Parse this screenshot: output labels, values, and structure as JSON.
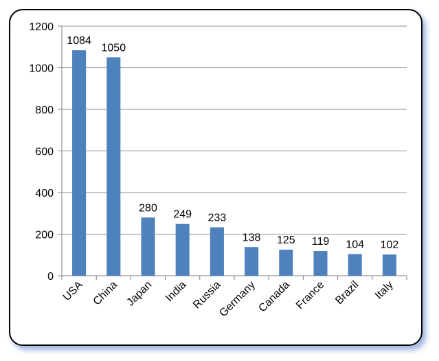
{
  "chart_data": {
    "type": "bar",
    "categories": [
      "USA",
      "China",
      "Japan",
      "India",
      "Russia",
      "Germany",
      "Canada",
      "France",
      "Brazil",
      "Italy"
    ],
    "values": [
      1084,
      1050,
      280,
      249,
      233,
      138,
      125,
      119,
      104,
      102
    ],
    "data_labels": [
      "1084",
      "1050",
      "280",
      "249",
      "233",
      "138",
      "125",
      "119",
      "104",
      "102"
    ],
    "y_ticks": [
      "0",
      "200",
      "400",
      "600",
      "800",
      "1000",
      "1200"
    ],
    "ylim": [
      0,
      1200
    ],
    "grid": true,
    "legend": "none",
    "bar_color": "#4F81BD",
    "title": "",
    "xlabel": "",
    "ylabel": ""
  }
}
